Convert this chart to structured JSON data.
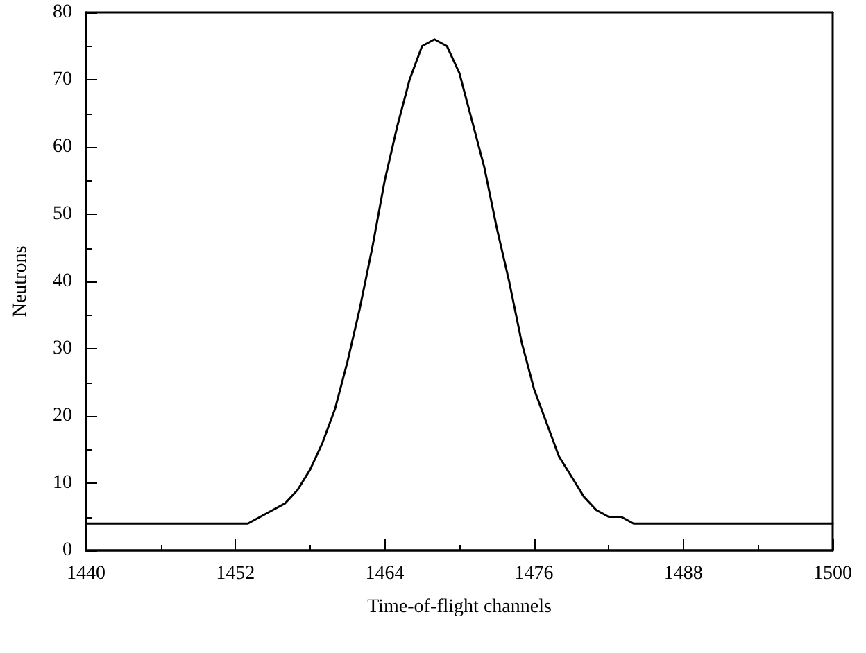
{
  "chart_data": {
    "type": "line",
    "xlabel": "Time-of-flight channels",
    "ylabel": "Neutrons",
    "x": [
      1440,
      1453,
      1454,
      1455,
      1456,
      1457,
      1458,
      1459,
      1460,
      1461,
      1462,
      1463,
      1464,
      1465,
      1466,
      1467,
      1468,
      1469,
      1470,
      1471,
      1472,
      1473,
      1474,
      1475,
      1476,
      1477,
      1478,
      1479,
      1480,
      1481,
      1482,
      1483,
      1484,
      1500
    ],
    "series": [
      {
        "color": "#000000",
        "values": [
          4,
          4,
          5,
          6,
          7,
          9,
          12,
          16,
          21,
          28,
          36,
          45,
          55,
          63,
          70,
          75,
          76,
          75,
          71,
          64,
          57,
          48,
          40,
          31,
          24,
          19,
          14,
          11,
          8,
          6,
          5,
          5,
          4,
          4
        ]
      }
    ],
    "xlim": [
      1440,
      1500
    ],
    "xticks": [
      1440,
      1452,
      1464,
      1476,
      1488,
      1500
    ],
    "ylim": [
      0,
      80
    ],
    "yticks": [
      0,
      10,
      20,
      30,
      40,
      50,
      60,
      70,
      80
    ],
    "marker": "none",
    "line_style": "solid"
  }
}
